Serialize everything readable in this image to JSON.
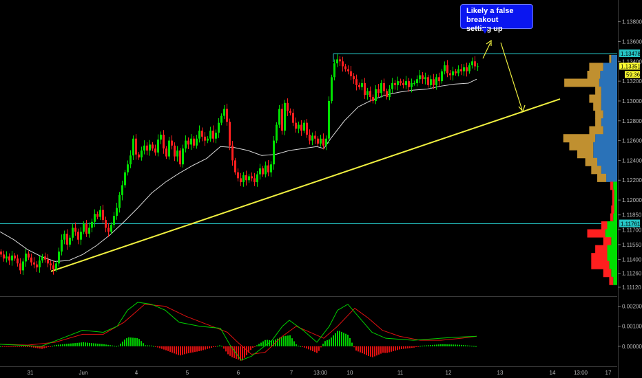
{
  "annotation": {
    "line1": "Likely a false breakout",
    "line2": "setting up"
  },
  "colors": {
    "up": "#00e000",
    "down": "#ff1f1f",
    "ma": "#d8d8d8",
    "trend": "#f0f040",
    "level": "#25c4c4",
    "vol_up": "#c09030",
    "vol_down": "#2a72b8",
    "macd": "#00d000",
    "signal": "#e01010"
  },
  "chart_data": [
    {
      "type": "candlestick",
      "title": "",
      "x_ticks": [
        "31",
        "Jun",
        "4",
        "5",
        "6",
        "7",
        "13:00",
        "10",
        "11",
        "12",
        "13",
        "14",
        "13:00",
        "17"
      ],
      "y_ticks": [
        "1.13800",
        "1.13600",
        "1.13400",
        "1.13200",
        "1.13000",
        "1.12800",
        "1.12600",
        "1.12400",
        "1.12200",
        "1.12000",
        "1.11850",
        "1.11700",
        "1.11550",
        "1.11400",
        "1.11260",
        "1.11120"
      ],
      "ylim": [
        1.1105,
        1.1395
      ],
      "levels": [
        {
          "label": "1.13478",
          "value": 1.13478
        },
        {
          "label": "1.11761",
          "value": 1.11761
        }
      ],
      "last_price": {
        "label": "1.13351",
        "countdown": "59:36"
      },
      "trendline": {
        "x": [
          74,
          813
        ],
        "y": [
          1.1128,
          1.1302
        ]
      },
      "closes": [
        [
          0,
          1.1145
        ],
        [
          4,
          1.1141
        ],
        [
          8,
          1.1143
        ],
        [
          12,
          1.1139
        ],
        [
          16,
          1.1144
        ],
        [
          20,
          1.1141
        ],
        [
          24,
          1.1136
        ],
        [
          28,
          1.1129
        ],
        [
          32,
          1.1138
        ],
        [
          36,
          1.1146
        ],
        [
          40,
          1.1142
        ],
        [
          44,
          1.1137
        ],
        [
          48,
          1.1135
        ],
        [
          52,
          1.1132
        ],
        [
          56,
          1.1139
        ],
        [
          60,
          1.1143
        ],
        [
          64,
          1.114
        ],
        [
          68,
          1.1136
        ],
        [
          72,
          1.1134
        ],
        [
          76,
          1.113
        ],
        [
          80,
          1.1136
        ],
        [
          84,
          1.1148
        ],
        [
          88,
          1.116
        ],
        [
          92,
          1.1166
        ],
        [
          96,
          1.1155
        ],
        [
          100,
          1.1162
        ],
        [
          104,
          1.1172
        ],
        [
          108,
          1.1168
        ],
        [
          112,
          1.116
        ],
        [
          116,
          1.1168
        ],
        [
          120,
          1.1176
        ],
        [
          124,
          1.1166
        ],
        [
          128,
          1.1172
        ],
        [
          132,
          1.1178
        ],
        [
          136,
          1.1186
        ],
        [
          140,
          1.1183
        ],
        [
          144,
          1.119
        ],
        [
          148,
          1.118
        ],
        [
          152,
          1.1172
        ],
        [
          156,
          1.1168
        ],
        [
          160,
          1.1175
        ],
        [
          164,
          1.1184
        ],
        [
          168,
          1.1192
        ],
        [
          172,
          1.1205
        ],
        [
          176,
          1.1215
        ],
        [
          180,
          1.1228
        ],
        [
          184,
          1.1236
        ],
        [
          188,
          1.1245
        ],
        [
          192,
          1.1262
        ],
        [
          196,
          1.1246
        ],
        [
          200,
          1.1243
        ],
        [
          204,
          1.125
        ],
        [
          208,
          1.1255
        ],
        [
          212,
          1.125
        ],
        [
          216,
          1.1256
        ],
        [
          220,
          1.1252
        ],
        [
          224,
          1.1248
        ],
        [
          228,
          1.1261
        ],
        [
          232,
          1.1266
        ],
        [
          236,
          1.1252
        ],
        [
          240,
          1.1244
        ],
        [
          244,
          1.126
        ],
        [
          248,
          1.1255
        ],
        [
          252,
          1.1244
        ],
        [
          256,
          1.125
        ],
        [
          260,
          1.1236
        ],
        [
          264,
          1.1252
        ],
        [
          268,
          1.126
        ],
        [
          272,
          1.1256
        ],
        [
          276,
          1.1262
        ],
        [
          280,
          1.1255
        ],
        [
          284,
          1.1262
        ],
        [
          288,
          1.127
        ],
        [
          292,
          1.1264
        ],
        [
          296,
          1.126
        ],
        [
          300,
          1.1262
        ],
        [
          304,
          1.127
        ],
        [
          308,
          1.1262
        ],
        [
          312,
          1.1268
        ],
        [
          316,
          1.1278
        ],
        [
          320,
          1.1285
        ],
        [
          324,
          1.1292
        ],
        [
          328,
          1.1279
        ],
        [
          332,
          1.1255
        ],
        [
          336,
          1.124
        ],
        [
          340,
          1.1228
        ],
        [
          344,
          1.1222
        ],
        [
          348,
          1.1218
        ],
        [
          352,
          1.1225
        ],
        [
          356,
          1.122
        ],
        [
          360,
          1.1224
        ],
        [
          364,
          1.1222
        ],
        [
          368,
          1.1218
        ],
        [
          372,
          1.1226
        ],
        [
          376,
          1.1232
        ],
        [
          380,
          1.1226
        ],
        [
          384,
          1.1235
        ],
        [
          388,
          1.1228
        ],
        [
          392,
          1.1236
        ],
        [
          396,
          1.126
        ],
        [
          400,
          1.1276
        ],
        [
          404,
          1.1292
        ],
        [
          408,
          1.127
        ],
        [
          412,
          1.1298
        ],
        [
          416,
          1.129
        ],
        [
          420,
          1.1288
        ],
        [
          424,
          1.1278
        ],
        [
          428,
          1.1272
        ],
        [
          432,
          1.1276
        ],
        [
          436,
          1.127
        ],
        [
          440,
          1.1278
        ],
        [
          444,
          1.1266
        ],
        [
          448,
          1.126
        ],
        [
          452,
          1.1265
        ],
        [
          456,
          1.1262
        ],
        [
          460,
          1.1257
        ],
        [
          464,
          1.1262
        ],
        [
          468,
          1.1255
        ],
        [
          472,
          1.1262
        ],
        [
          476,
          1.13
        ],
        [
          480,
          1.1324
        ],
        [
          484,
          1.1338
        ],
        [
          488,
          1.1342
        ],
        [
          492,
          1.134
        ],
        [
          496,
          1.1335
        ],
        [
          500,
          1.1332
        ],
        [
          504,
          1.133
        ],
        [
          508,
          1.1325
        ],
        [
          512,
          1.1322
        ],
        [
          516,
          1.1316
        ],
        [
          520,
          1.1314
        ],
        [
          524,
          1.1318
        ],
        [
          528,
          1.1306
        ],
        [
          532,
          1.131
        ],
        [
          536,
          1.1304
        ],
        [
          540,
          1.13
        ],
        [
          544,
          1.1312
        ],
        [
          548,
          1.1308
        ],
        [
          552,
          1.1318
        ],
        [
          556,
          1.131
        ],
        [
          560,
          1.1304
        ],
        [
          564,
          1.1312
        ],
        [
          568,
          1.1318
        ],
        [
          572,
          1.1316
        ],
        [
          576,
          1.132
        ],
        [
          580,
          1.1318
        ],
        [
          584,
          1.1316
        ],
        [
          588,
          1.132
        ],
        [
          592,
          1.1314
        ],
        [
          596,
          1.1318
        ],
        [
          600,
          1.1318
        ],
        [
          604,
          1.1322
        ],
        [
          608,
          1.1326
        ],
        [
          612,
          1.1322
        ],
        [
          616,
          1.1324
        ],
        [
          620,
          1.1316
        ],
        [
          624,
          1.1322
        ],
        [
          628,
          1.1316
        ],
        [
          632,
          1.1324
        ],
        [
          636,
          1.132
        ],
        [
          640,
          1.133
        ],
        [
          644,
          1.1336
        ],
        [
          648,
          1.1328
        ],
        [
          652,
          1.1326
        ],
        [
          656,
          1.133
        ],
        [
          660,
          1.1328
        ],
        [
          664,
          1.1332
        ],
        [
          668,
          1.133
        ],
        [
          672,
          1.1334
        ],
        [
          676,
          1.133
        ],
        [
          680,
          1.1336
        ],
        [
          684,
          1.134
        ],
        [
          688,
          1.1335
        ],
        [
          692,
          1.1335
        ]
      ],
      "ma": [
        [
          0,
          1.1168
        ],
        [
          20,
          1.116
        ],
        [
          40,
          1.115
        ],
        [
          60,
          1.1143
        ],
        [
          80,
          1.1138
        ],
        [
          100,
          1.1139
        ],
        [
          120,
          1.1145
        ],
        [
          140,
          1.1154
        ],
        [
          160,
          1.1165
        ],
        [
          180,
          1.1178
        ],
        [
          200,
          1.1192
        ],
        [
          220,
          1.1207
        ],
        [
          240,
          1.1218
        ],
        [
          260,
          1.1227
        ],
        [
          280,
          1.1235
        ],
        [
          300,
          1.1242
        ],
        [
          320,
          1.1254
        ],
        [
          340,
          1.1253
        ],
        [
          360,
          1.125
        ],
        [
          380,
          1.1245
        ],
        [
          400,
          1.1246
        ],
        [
          420,
          1.125
        ],
        [
          440,
          1.1252
        ],
        [
          460,
          1.1254
        ],
        [
          470,
          1.1252
        ],
        [
          480,
          1.1262
        ],
        [
          500,
          1.128
        ],
        [
          520,
          1.1294
        ],
        [
          540,
          1.1301
        ],
        [
          560,
          1.1306
        ],
        [
          580,
          1.1309
        ],
        [
          600,
          1.1311
        ],
        [
          620,
          1.1312
        ],
        [
          640,
          1.1315
        ],
        [
          660,
          1.1317
        ],
        [
          680,
          1.1318
        ],
        [
          692,
          1.1322
        ]
      ],
      "volume_profile": [
        {
          "price": 1.1342,
          "buy": 6,
          "sell": 2
        },
        {
          "price": 1.1334,
          "buy": 14,
          "sell": 14
        },
        {
          "price": 1.1326,
          "buy": 17,
          "sell": 13
        },
        {
          "price": 1.1318,
          "buy": 18,
          "sell": 35
        },
        {
          "price": 1.131,
          "buy": 16,
          "sell": 6
        },
        {
          "price": 1.1302,
          "buy": 16,
          "sell": 12
        },
        {
          "price": 1.1294,
          "buy": 16,
          "sell": 8
        },
        {
          "price": 1.1286,
          "buy": 14,
          "sell": 8
        },
        {
          "price": 1.1278,
          "buy": 16,
          "sell": 6
        },
        {
          "price": 1.127,
          "buy": 14,
          "sell": 14
        },
        {
          "price": 1.1262,
          "buy": 22,
          "sell": 32
        },
        {
          "price": 1.1254,
          "buy": 24,
          "sell": 24
        },
        {
          "price": 1.1246,
          "buy": 24,
          "sell": 16
        },
        {
          "price": 1.1238,
          "buy": 20,
          "sell": 12
        },
        {
          "price": 1.123,
          "buy": 16,
          "sell": 10
        },
        {
          "price": 1.1222,
          "buy": 11,
          "sell": 9
        },
        {
          "price": 1.1214,
          "buy": 4,
          "sell": 3
        },
        {
          "price": 1.1206,
          "buy": 3,
          "sell": 2
        },
        {
          "price": 1.1198,
          "buy": 3,
          "sell": 2
        },
        {
          "price": 1.119,
          "buy": 3,
          "sell": 3
        },
        {
          "price": 1.1182,
          "buy": 4,
          "sell": 3
        },
        {
          "price": 1.1174,
          "buy": 10,
          "sell": 6
        },
        {
          "price": 1.1166,
          "buy": 12,
          "sell": 18
        },
        {
          "price": 1.1158,
          "buy": 6,
          "sell": 8
        },
        {
          "price": 1.115,
          "buy": 10,
          "sell": 12
        },
        {
          "price": 1.1142,
          "buy": 10,
          "sell": 16
        },
        {
          "price": 1.1134,
          "buy": 8,
          "sell": 18
        },
        {
          "price": 1.1126,
          "buy": 6,
          "sell": 8
        },
        {
          "price": 1.1118,
          "buy": 4,
          "sell": 4
        }
      ]
    },
    {
      "type": "bar+line",
      "title": "",
      "y_ticks": [
        "0.00200",
        "0.00100",
        "0.00000"
      ],
      "ylim": [
        -0.0009,
        0.0024
      ],
      "macd": [
        [
          0,
          0.0001
        ],
        [
          30,
          5e-05
        ],
        [
          60,
          0.0
        ],
        [
          90,
          0.0004
        ],
        [
          120,
          0.0008
        ],
        [
          150,
          0.0007
        ],
        [
          170,
          0.001
        ],
        [
          185,
          0.0018
        ],
        [
          200,
          0.0022
        ],
        [
          220,
          0.0021
        ],
        [
          240,
          0.0018
        ],
        [
          260,
          0.0012
        ],
        [
          290,
          0.001
        ],
        [
          320,
          0.0009
        ],
        [
          335,
          0.0
        ],
        [
          350,
          -0.0007
        ],
        [
          365,
          -0.0005
        ],
        [
          380,
          -0.0001
        ],
        [
          395,
          0.0003
        ],
        [
          410,
          0.001
        ],
        [
          420,
          0.0013
        ],
        [
          440,
          0.0008
        ],
        [
          460,
          0.0002
        ],
        [
          478,
          0.001
        ],
        [
          490,
          0.0018
        ],
        [
          505,
          0.0021
        ],
        [
          520,
          0.0015
        ],
        [
          540,
          0.0007
        ],
        [
          560,
          0.0004
        ],
        [
          580,
          0.00035
        ],
        [
          600,
          0.0003
        ],
        [
          620,
          0.00035
        ],
        [
          640,
          0.0004
        ],
        [
          660,
          0.00045
        ],
        [
          692,
          0.0005
        ]
      ],
      "signal": [
        [
          0,
          0.0001
        ],
        [
          40,
          6e-05
        ],
        [
          80,
          0.0002
        ],
        [
          120,
          0.0006
        ],
        [
          150,
          0.0006
        ],
        [
          180,
          0.0012
        ],
        [
          210,
          0.0021
        ],
        [
          240,
          0.002
        ],
        [
          270,
          0.0015
        ],
        [
          300,
          0.0011
        ],
        [
          330,
          0.0007
        ],
        [
          345,
          0.0002
        ],
        [
          365,
          -0.0004
        ],
        [
          385,
          -0.0003
        ],
        [
          410,
          0.0005
        ],
        [
          430,
          0.001
        ],
        [
          450,
          0.0007
        ],
        [
          470,
          0.0004
        ],
        [
          490,
          0.001
        ],
        [
          515,
          0.0019
        ],
        [
          535,
          0.0014
        ],
        [
          555,
          0.0008
        ],
        [
          580,
          0.0005
        ],
        [
          610,
          0.0003
        ],
        [
          640,
          0.0003
        ],
        [
          670,
          0.0004
        ],
        [
          692,
          0.0005
        ]
      ]
    }
  ]
}
